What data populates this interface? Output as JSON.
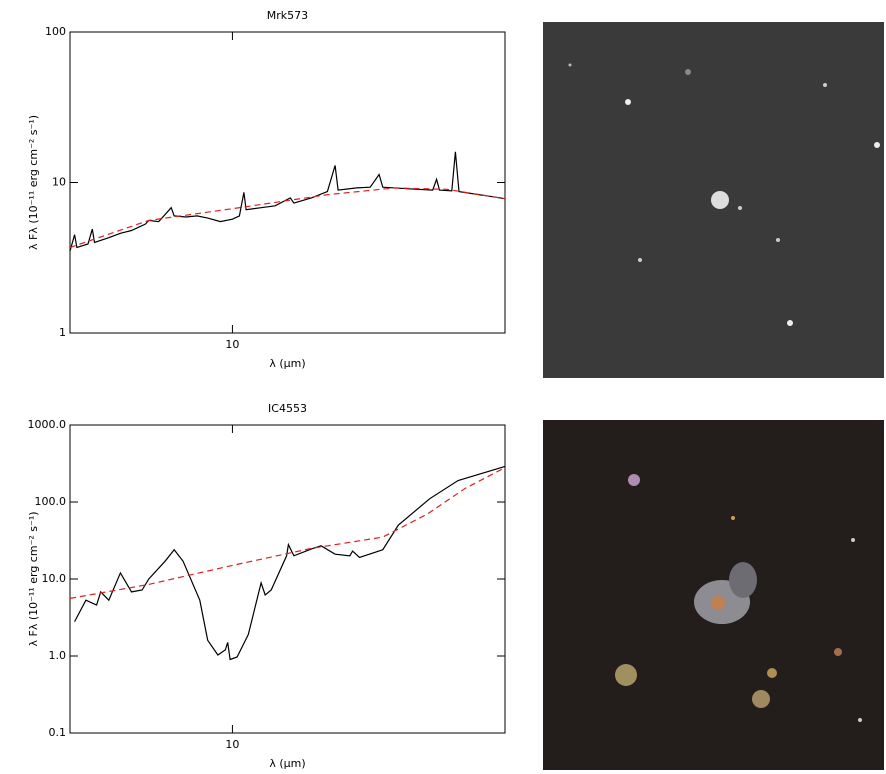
{
  "chart_data": [
    {
      "type": "line",
      "title": "Mrk573",
      "xlabel": "λ (μm)",
      "ylabel": "λ Fλ (10⁻¹¹ erg cm⁻² s⁻¹)",
      "xlog": true,
      "ylog": true,
      "xlim": [
        5,
        32
      ],
      "ylim": [
        1,
        100
      ],
      "xticks": [
        10
      ],
      "yticks": [
        1,
        10,
        100
      ],
      "series": [
        {
          "color": "#000000",
          "dashed": false,
          "x": [
            5,
            5.1,
            5.15,
            5.4,
            5.5,
            5.55,
            5.9,
            6.2,
            6.5,
            6.9,
            7.0,
            7.3,
            7.7,
            7.8,
            8.2,
            8.6,
            9.0,
            9.5,
            10.0,
            10.3,
            10.5,
            10.6,
            11.3,
            12.0,
            12.8,
            13.0,
            14.0,
            15.0,
            15.5,
            15.7,
            17.0,
            18.0,
            18.7,
            19.0,
            21,
            23.5,
            23.9,
            24.2,
            25.5,
            25.9,
            26.3,
            28,
            30,
            32
          ],
          "values": [
            3.5,
            4.5,
            3.7,
            3.9,
            4.9,
            4.0,
            4.3,
            4.6,
            4.8,
            5.3,
            5.6,
            5.5,
            6.8,
            6.0,
            5.9,
            6.0,
            5.8,
            5.5,
            5.7,
            6.0,
            8.6,
            6.6,
            6.8,
            7.0,
            7.9,
            7.3,
            7.9,
            8.7,
            13.0,
            8.9,
            9.2,
            9.3,
            11.3,
            9.3,
            9.1,
            8.9,
            10.5,
            8.9,
            8.8,
            16.0,
            8.7,
            8.4,
            8.1,
            7.8
          ]
        },
        {
          "color": "#e02020",
          "dashed": true,
          "x": [
            5,
            7,
            10,
            15,
            20,
            25,
            32
          ],
          "values": [
            3.7,
            5.6,
            6.7,
            8.3,
            9.2,
            9.0,
            7.8
          ]
        }
      ]
    },
    {
      "type": "line",
      "title": "IC4553",
      "xlabel": "λ (μm)",
      "ylabel": "λ Fλ (10⁻¹¹ erg cm⁻² s⁻¹)",
      "xlog": true,
      "ylog": true,
      "xlim": [
        5,
        32
      ],
      "ylim": [
        0.1,
        1000
      ],
      "xticks": [
        10
      ],
      "yticks": [
        {
          "value": 0.1,
          "label": "0.1"
        },
        {
          "value": 1,
          "label": "1.0"
        },
        {
          "value": 10,
          "label": "10.0"
        },
        {
          "value": 100,
          "label": "100.0"
        },
        {
          "value": 1000,
          "label": "1000.0"
        }
      ],
      "series": [
        {
          "color": "#000000",
          "dashed": false,
          "x": [
            5.1,
            5.35,
            5.6,
            5.7,
            5.9,
            6.2,
            6.5,
            6.8,
            7.0,
            7.5,
            7.8,
            8.1,
            8.7,
            9.0,
            9.4,
            9.7,
            9.8,
            9.9,
            10.2,
            10.7,
            11.3,
            11.5,
            11.8,
            12.6,
            12.7,
            13.0,
            14.1,
            14.6,
            15.5,
            16.5,
            16.7,
            17.2,
            19.0,
            20.3,
            23.2,
            26.2,
            32
          ],
          "values": [
            2.8,
            5.3,
            4.6,
            6.8,
            5.3,
            12,
            6.8,
            7.2,
            10,
            17,
            24,
            17,
            5.3,
            1.6,
            1.03,
            1.2,
            1.5,
            0.9,
            0.97,
            1.9,
            8.9,
            6.2,
            7.2,
            20,
            28,
            20,
            25,
            27,
            21,
            20,
            23,
            19,
            24,
            50,
            110,
            190,
            290
          ]
        },
        {
          "color": "#e02020",
          "dashed": true,
          "x": [
            5,
            7,
            10,
            14,
            19,
            23,
            27,
            32
          ],
          "values": [
            5.6,
            8.5,
            15,
            25,
            35,
            70,
            150,
            280
          ]
        }
      ]
    }
  ]
}
